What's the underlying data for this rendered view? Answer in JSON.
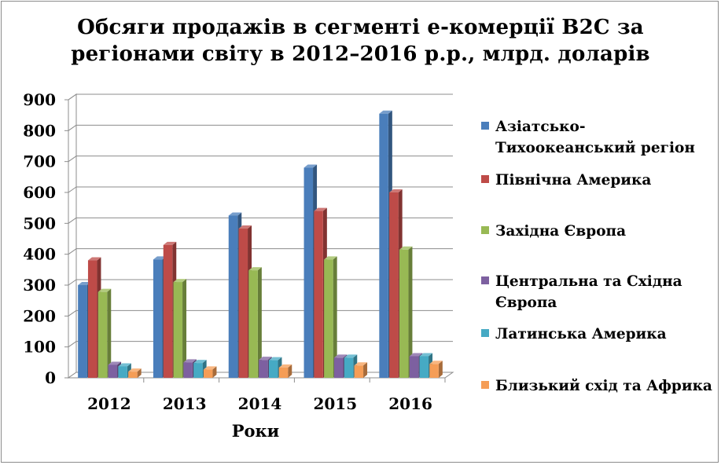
{
  "chart_data": {
    "type": "bar",
    "title_lines": [
      "Обсяги продажів в сегменті е-комерції В2С за",
      "регіонами світу в 2012–2016 р.р., млрд. доларів"
    ],
    "xlabel": "Роки",
    "ylabel": "",
    "categories": [
      "2012",
      "2013",
      "2014",
      "2015",
      "2016"
    ],
    "ylim": [
      0,
      900
    ],
    "yticks": [
      "0",
      "100",
      "200",
      "300",
      "400",
      "500",
      "600",
      "700",
      "800",
      "900"
    ],
    "grid": true,
    "legend_position": "right",
    "series": [
      {
        "name": "Азіатсько-Тихоокеанський регіон",
        "color": "#4a7ebb",
        "values": [
          300,
          383,
          525,
          680,
          855
        ]
      },
      {
        "name": "Північна Америка",
        "color": "#be4b48",
        "values": [
          380,
          430,
          483,
          540,
          600
        ]
      },
      {
        "name": "Західна Європа",
        "color": "#98b954",
        "values": [
          278,
          310,
          348,
          383,
          415
        ]
      },
      {
        "name": "Центральна та Східна Європа",
        "color": "#7d60a0",
        "values": [
          42,
          50,
          58,
          65,
          70
        ]
      },
      {
        "name": "Латинська Америка",
        "color": "#46aac4",
        "values": [
          37,
          48,
          57,
          65,
          70
        ]
      },
      {
        "name": "Близький схід та Африка",
        "color": "#f59d56",
        "values": [
          20,
          27,
          33,
          40,
          45
        ]
      }
    ]
  }
}
